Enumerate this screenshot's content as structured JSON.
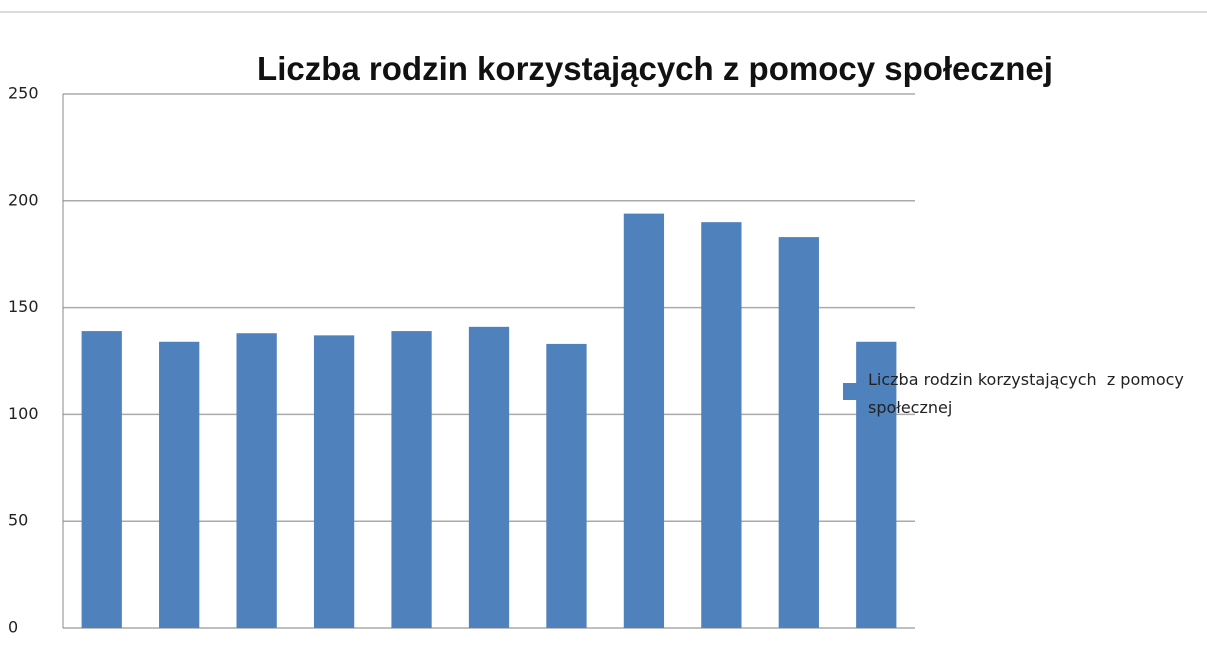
{
  "chart_data": {
    "type": "bar",
    "title": "Liczba rodzin korzystających z pomocy społecznej",
    "categories": [
      null,
      null,
      null,
      null,
      null,
      null,
      null,
      null,
      null,
      null,
      null
    ],
    "series": [
      {
        "name": "Liczba rodzin korzystających  z pomocy społecznej",
        "color": "#4f81bd",
        "values": [
          139,
          134,
          138,
          137,
          139,
          141,
          133,
          194,
          190,
          183,
          134
        ]
      }
    ],
    "ylim": [
      0,
      250
    ],
    "yticks": [
      0,
      50,
      100,
      150,
      200,
      250
    ],
    "grid": true,
    "legend": "right"
  }
}
